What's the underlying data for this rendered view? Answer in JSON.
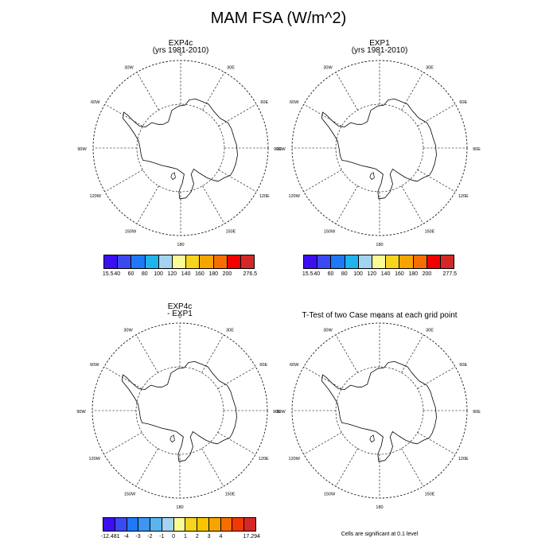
{
  "title": "MAM FSA (W/m^2)",
  "colors": {
    "levels": [
      "#3b0ff0",
      "#3b4af0",
      "#1f78f5",
      "#1fb4ee",
      "#a3d3f0",
      "#fbfb96",
      "#f6d41f",
      "#f6a500",
      "#f66e00",
      "#f00000",
      "#d42828"
    ],
    "diff_levels": [
      "#3b0ff0",
      "#3b4af0",
      "#1f78f5",
      "#3c96f0",
      "#5cb4ee",
      "#a3d3f0",
      "#fbfb96",
      "#f6d41f",
      "#f6c400",
      "#f6a500",
      "#f66e00",
      "#f03a00",
      "#d42828"
    ]
  },
  "panels": [
    {
      "id": "p1",
      "title_lines": [
        "EXP4c",
        "(yrs 1981-2010)"
      ],
      "colorbar": {
        "kind": "levels",
        "labels": [
          "15.5",
          "40",
          "60",
          "80",
          "100",
          "120",
          "140",
          "160",
          "180",
          "200",
          "276.5"
        ]
      }
    },
    {
      "id": "p2",
      "title_lines": [
        "EXP1",
        "(yrs 1981-2010)"
      ],
      "colorbar": {
        "kind": "levels",
        "labels": [
          "15.5",
          "40",
          "60",
          "80",
          "100",
          "120",
          "140",
          "160",
          "180",
          "200",
          "277.5"
        ]
      }
    },
    {
      "id": "p3",
      "title_lines": [
        "EXP4c",
        "- EXP1"
      ],
      "colorbar": {
        "kind": "diff_levels",
        "labels": [
          "-12.481",
          "-4",
          "-3",
          "-2",
          "-1",
          "0",
          "1",
          "2",
          "3",
          "4",
          "17.294"
        ]
      }
    },
    {
      "id": "p4",
      "title_lines": [
        "T-Test of two Case means at each grid point"
      ],
      "note": "Cells are significant at 0.1 level"
    }
  ],
  "map": {
    "projection": "south-polar-stereographic",
    "longitude_labels": [
      "0",
      "30E",
      "60E",
      "90E",
      "120E",
      "150E",
      "180",
      "150W",
      "120W",
      "90W",
      "60W",
      "30W"
    ],
    "grid": "dashed",
    "coastline": "Antarctica"
  }
}
